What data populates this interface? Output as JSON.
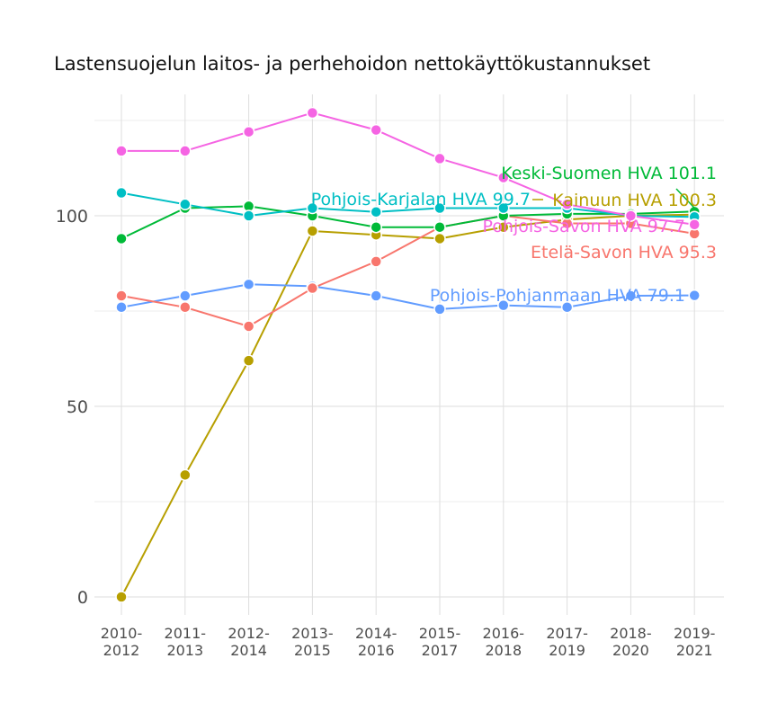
{
  "chart_data": {
    "type": "line",
    "title": "Lastensuojelun laitos- ja perhehoidon nettokäyttökustannukset",
    "xlabel": "",
    "ylabel": "",
    "categories": [
      "2010-2012",
      "2011-2013",
      "2012-2014",
      "2013-2015",
      "2014-2016",
      "2015-2017",
      "2016-2018",
      "2017-2019",
      "2018-2020",
      "2019-2021"
    ],
    "category_lines": [
      [
        "2010-",
        "2012"
      ],
      [
        "2011-",
        "2013"
      ],
      [
        "2012-",
        "2014"
      ],
      [
        "2013-",
        "2015"
      ],
      [
        "2014-",
        "2016"
      ],
      [
        "2015-",
        "2017"
      ],
      [
        "2016-",
        "2018"
      ],
      [
        "2017-",
        "2019"
      ],
      [
        "2018-",
        "2020"
      ],
      [
        "2019-",
        "2021"
      ]
    ],
    "ylim": [
      -5,
      130
    ],
    "yticks": [
      0,
      50,
      100
    ],
    "grid": true,
    "legend": "direct labels at line ends",
    "series": [
      {
        "name": "Kainuun HVA",
        "color": "#b79f00",
        "values": [
          0,
          32,
          62,
          96,
          95,
          94,
          97,
          99,
          100,
          100.3
        ],
        "label": "Kainuun HVA 100.3"
      },
      {
        "name": "Pohjois-Pohjanmaan HVA",
        "color": "#619cff",
        "values": [
          76,
          79,
          82,
          81.5,
          79,
          75.5,
          76.5,
          76,
          79,
          79.1
        ],
        "label": "Pohjois-Pohjanmaan HVA 79.1"
      },
      {
        "name": "Etelä-Savon HVA",
        "color": "#f8766d",
        "values": [
          79,
          76,
          71,
          81,
          88,
          97,
          100,
          98,
          98,
          95.3
        ],
        "label": "Etelä-Savon HVA 95.3"
      },
      {
        "name": "Keski-Suomen HVA",
        "color": "#00ba38",
        "values": [
          94,
          102,
          102.5,
          100,
          97,
          97,
          100,
          100.5,
          100.5,
          101.1
        ],
        "label": "Keski-Suomen HVA 101.1"
      },
      {
        "name": "Pohjois-Karjalan HVA",
        "color": "#00bfc4",
        "values": [
          106,
          103,
          100,
          102,
          101,
          102,
          102,
          102,
          100,
          99.7
        ],
        "label": "Pohjois-Karjalan HVA 99.7"
      },
      {
        "name": "Pohjois-Savon HVA",
        "color": "#f564e3",
        "values": [
          117,
          117,
          122,
          127,
          122.5,
          115,
          110,
          103,
          100,
          97.7
        ],
        "label": "Pohjois-Savon HVA 97.7"
      }
    ]
  }
}
